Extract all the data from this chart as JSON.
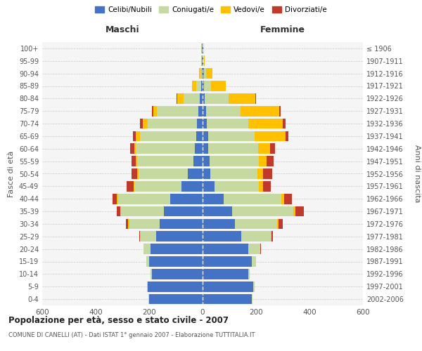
{
  "age_groups": [
    "0-4",
    "5-9",
    "10-14",
    "15-19",
    "20-24",
    "25-29",
    "30-34",
    "35-39",
    "40-44",
    "45-49",
    "50-54",
    "55-59",
    "60-64",
    "65-69",
    "70-74",
    "75-79",
    "80-84",
    "85-89",
    "90-94",
    "95-99",
    "100+"
  ],
  "birth_years": [
    "2002-2006",
    "1997-2001",
    "1992-1996",
    "1987-1991",
    "1982-1986",
    "1977-1981",
    "1972-1976",
    "1967-1971",
    "1962-1966",
    "1957-1961",
    "1952-1956",
    "1947-1951",
    "1942-1946",
    "1937-1941",
    "1932-1936",
    "1927-1931",
    "1922-1926",
    "1917-1921",
    "1912-1916",
    "1907-1911",
    "≤ 1906"
  ],
  "male": {
    "celibi": [
      200,
      205,
      190,
      200,
      195,
      175,
      160,
      145,
      120,
      80,
      55,
      35,
      30,
      25,
      20,
      15,
      10,
      5,
      3,
      2,
      2
    ],
    "coniugati": [
      2,
      2,
      5,
      10,
      25,
      60,
      115,
      160,
      195,
      175,
      185,
      210,
      220,
      210,
      185,
      155,
      60,
      20,
      5,
      3,
      2
    ],
    "vedovi": [
      0,
      0,
      0,
      0,
      0,
      0,
      3,
      3,
      5,
      3,
      5,
      5,
      5,
      15,
      20,
      15,
      25,
      15,
      5,
      0,
      0
    ],
    "divorziati": [
      0,
      0,
      0,
      0,
      2,
      3,
      8,
      12,
      18,
      25,
      20,
      15,
      15,
      10,
      8,
      5,
      3,
      0,
      0,
      0,
      0
    ]
  },
  "female": {
    "nubili": [
      185,
      190,
      170,
      185,
      170,
      145,
      120,
      110,
      80,
      45,
      30,
      25,
      22,
      20,
      15,
      12,
      8,
      6,
      4,
      2,
      2
    ],
    "coniugate": [
      3,
      5,
      7,
      15,
      45,
      110,
      160,
      230,
      215,
      165,
      175,
      185,
      185,
      175,
      155,
      130,
      90,
      25,
      8,
      2,
      2
    ],
    "vedove": [
      0,
      0,
      0,
      0,
      2,
      3,
      5,
      8,
      10,
      15,
      20,
      30,
      45,
      115,
      130,
      145,
      100,
      55,
      25,
      5,
      2
    ],
    "divorziate": [
      0,
      0,
      0,
      0,
      2,
      5,
      15,
      30,
      30,
      30,
      35,
      25,
      20,
      10,
      10,
      5,
      3,
      0,
      0,
      0,
      0
    ]
  },
  "colors": {
    "celibi_nubili": "#4472c4",
    "coniugati": "#c5d9a0",
    "vedovi": "#ffc000",
    "divorziati": "#c0392b"
  },
  "xlim": 600,
  "title": "Popolazione per età, sesso e stato civile - 2007",
  "subtitle": "COMUNE DI CANELLI (AT) - Dati ISTAT 1° gennaio 2007 - Elaborazione TUTTITALIA.IT",
  "ylabel_left": "Fasce di età",
  "ylabel_right": "Anni di nascita",
  "xlabel_maschi": "Maschi",
  "xlabel_femmine": "Femmine",
  "legend_labels": [
    "Celibi/Nubili",
    "Coniugati/e",
    "Vedovi/e",
    "Divorziati/e"
  ],
  "background_color": "#ffffff",
  "plot_bg_color": "#f5f5f5",
  "grid_color": "#cccccc"
}
